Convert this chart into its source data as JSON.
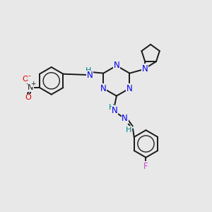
{
  "bg_color": "#e8e8e8",
  "bond_color": "#1a1a1a",
  "N_color": "#0000ee",
  "NH_color": "#008080",
  "O_color": "#dd0000",
  "F_color": "#cc44cc",
  "H_color": "#008080",
  "line_width": 1.4,
  "font_size": 8.5,
  "fig_width": 3.0,
  "fig_height": 3.0,
  "dpi": 100,
  "xlim": [
    0,
    10
  ],
  "ylim": [
    0,
    10
  ]
}
